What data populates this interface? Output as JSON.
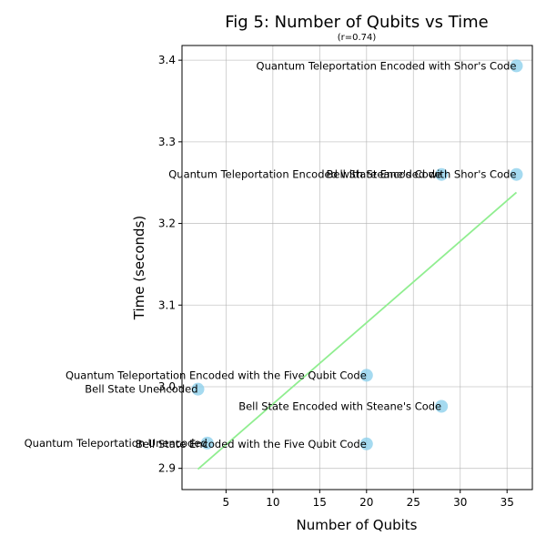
{
  "chart_data": {
    "type": "scatter",
    "title": "Fig 5: Number of Qubits vs Time",
    "subtitle": "(r=0.74)",
    "xlabel": "Number of Qubits",
    "ylabel": "Time (seconds)",
    "xlim": [
      0.3,
      37.7
    ],
    "ylim": [
      2.874,
      3.418
    ],
    "xticks": [
      5,
      10,
      15,
      20,
      25,
      30,
      35
    ],
    "yticks": [
      2.9,
      3.0,
      3.1,
      3.2,
      3.3,
      3.4
    ],
    "xtick_labels": [
      "5",
      "10",
      "15",
      "20",
      "25",
      "30",
      "35"
    ],
    "ytick_labels": [
      "2.9",
      "3.0",
      "3.1",
      "3.2",
      "3.3",
      "3.4"
    ],
    "grid": true,
    "point_color": "#87ceeb",
    "trend_color": "#90ee90",
    "trendline": {
      "x": [
        2,
        36
      ],
      "y": [
        2.899,
        3.238
      ]
    },
    "points": [
      {
        "x": 36,
        "y": 3.393,
        "label": "Quantum Teleportation Encoded with Shor's Code",
        "anchor": "end"
      },
      {
        "x": 36,
        "y": 3.26,
        "label": "Bell State Encoded with Shor's Code",
        "anchor": "end"
      },
      {
        "x": 28,
        "y": 3.26,
        "label": "Quantum Teleportation Encoded with Steane's Code",
        "anchor": "end"
      },
      {
        "x": 20,
        "y": 3.014,
        "label": "Quantum Teleportation Encoded with the Five Qubit Code",
        "anchor": "end"
      },
      {
        "x": 2,
        "y": 2.997,
        "label": "Bell State Unencoded",
        "anchor": "end"
      },
      {
        "x": 28,
        "y": 2.976,
        "label": "Bell State Encoded with Steane's Code",
        "anchor": "end"
      },
      {
        "x": 3,
        "y": 2.931,
        "label": "Quantum Teleportation Unencoded",
        "anchor": "end"
      },
      {
        "x": 20,
        "y": 2.93,
        "label": "Bell State Encoded with the Five Qubit Code",
        "anchor": "end"
      }
    ]
  }
}
